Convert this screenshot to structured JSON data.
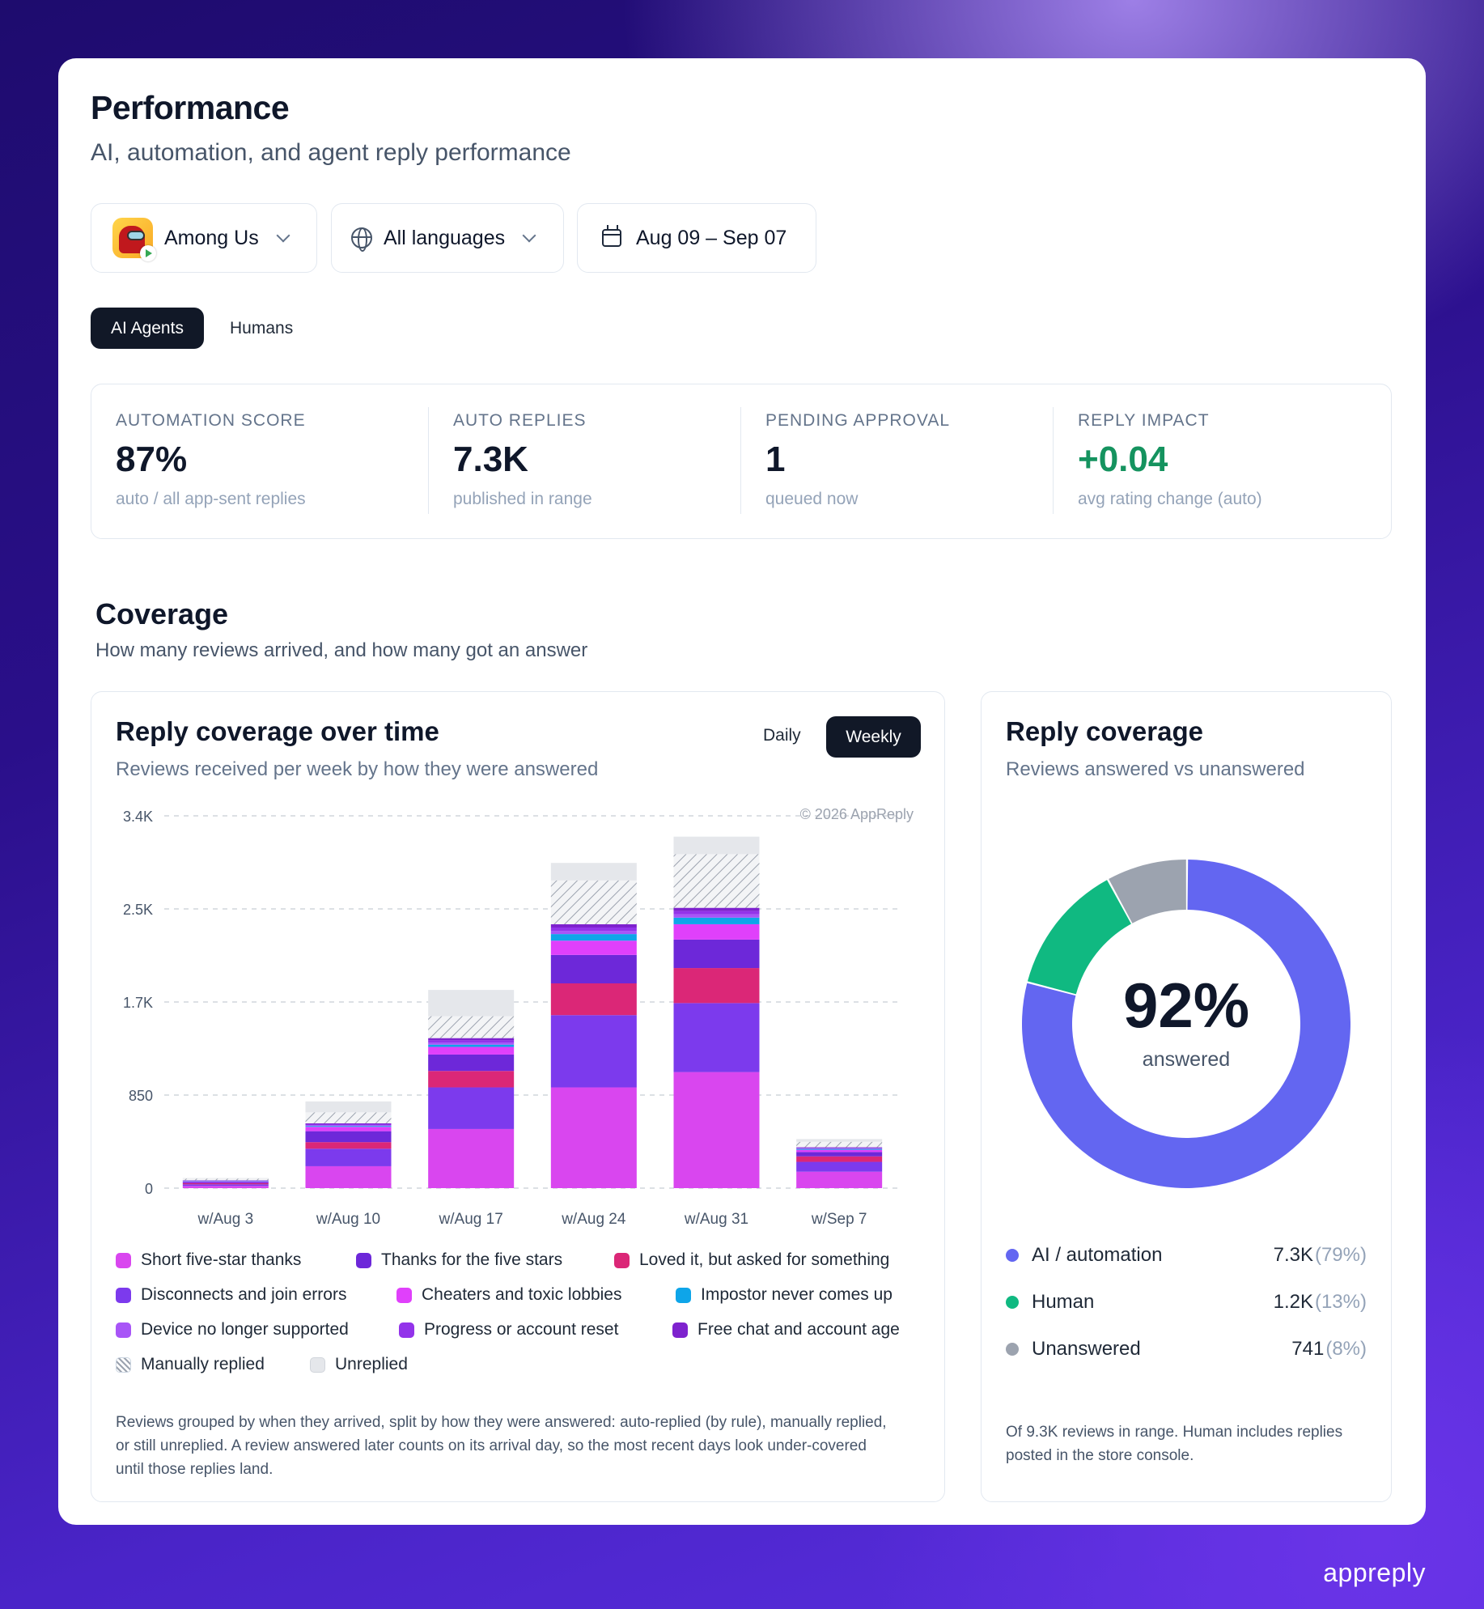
{
  "header": {
    "title": "Performance",
    "subtitle": "AI, automation, and agent reply performance"
  },
  "filters": {
    "app": "Among Us",
    "language": "All languages",
    "date_range": "Aug 09 – Sep 07"
  },
  "mode_tabs": {
    "active": "AI Agents",
    "inactive": "Humans"
  },
  "stats": [
    {
      "label": "AUTOMATION SCORE",
      "value": "87%",
      "detail": "auto / all app-sent replies"
    },
    {
      "label": "AUTO REPLIES",
      "value": "7.3K",
      "detail": "published in range"
    },
    {
      "label": "PENDING APPROVAL",
      "value": "1",
      "detail": "queued now"
    },
    {
      "label": "REPLY IMPACT",
      "value": "+0.04",
      "detail": "avg rating change (auto)"
    }
  ],
  "coverage": {
    "title": "Coverage",
    "subtitle": "How many reviews arrived, and how many got an answer"
  },
  "time_panel": {
    "title": "Reply coverage over time",
    "subtitle": "Reviews received per week by how they were answered",
    "toggle_daily": "Daily",
    "toggle_weekly": "Weekly",
    "watermark": "© 2026 AppReply",
    "note": "Reviews grouped by when they arrived, split by how they were answered: auto-replied (by rule), manually replied, or still unreplied. A review answered later counts on its arrival day, so the most recent days look under-covered until those replies land."
  },
  "chart_data": {
    "type": "bar",
    "stacked": true,
    "categories": [
      "w/Aug 3",
      "w/Aug 10",
      "w/Aug 17",
      "w/Aug 24",
      "w/Aug 31",
      "w/Sep 7"
    ],
    "y_ticks": [
      "0",
      "850",
      "1.7K",
      "2.5K",
      "3.4K"
    ],
    "y_tick_values": [
      0,
      850,
      1700,
      2550,
      3400
    ],
    "ylim": [
      0,
      3400
    ],
    "grid": true,
    "legend_position": "bottom",
    "series": [
      {
        "name": "Short five-star thanks",
        "color": "#d946ef",
        "values": [
          20,
          200,
          540,
          920,
          1060,
          150
        ]
      },
      {
        "name": "Disconnects and join errors",
        "color": "#7c3aed",
        "values": [
          15,
          160,
          380,
          660,
          630,
          90
        ]
      },
      {
        "name": "Loved it, but asked for something",
        "color": "#db2777",
        "values": [
          10,
          60,
          150,
          290,
          320,
          50
        ]
      },
      {
        "name": "Thanks for the five stars",
        "color": "#6d28d9",
        "values": [
          10,
          100,
          150,
          260,
          260,
          40
        ]
      },
      {
        "name": "Cheaters and toxic lobbies",
        "color": "#e040fb",
        "values": [
          5,
          40,
          70,
          130,
          140,
          20
        ]
      },
      {
        "name": "Impostor never comes up",
        "color": "#0ea5e9",
        "values": [
          3,
          8,
          20,
          60,
          60,
          8
        ]
      },
      {
        "name": "Device no longer supported",
        "color": "#a855f7",
        "values": [
          3,
          8,
          20,
          30,
          30,
          5
        ]
      },
      {
        "name": "Progress or account reset",
        "color": "#9333ea",
        "values": [
          3,
          8,
          20,
          30,
          30,
          5
        ]
      },
      {
        "name": "Free chat and account age",
        "color": "#7e22ce",
        "values": [
          3,
          8,
          20,
          30,
          30,
          5
        ]
      },
      {
        "name": "Manually replied",
        "color": "hatch",
        "values": [
          15,
          100,
          200,
          400,
          490,
          50
        ]
      },
      {
        "name": "Unreplied",
        "color": "#e5e7eb",
        "values": [
          5,
          100,
          240,
          160,
          160,
          25
        ]
      }
    ]
  },
  "legend": {
    "items": [
      {
        "name": "Short five-star thanks",
        "color": "#d946ef"
      },
      {
        "name": "Thanks for the five stars",
        "color": "#6d28d9"
      },
      {
        "name": "Loved it, but asked for something",
        "color": "#db2777"
      },
      {
        "name": "Disconnects and join errors",
        "color": "#7c3aed"
      },
      {
        "name": "Cheaters and toxic lobbies",
        "color": "#e040fb"
      },
      {
        "name": "Impostor never comes up",
        "color": "#0ea5e9"
      },
      {
        "name": "Device no longer supported",
        "color": "#a855f7"
      },
      {
        "name": "Progress or account reset",
        "color": "#9333ea"
      },
      {
        "name": "Free chat and account age",
        "color": "#7e22ce"
      },
      {
        "name": "Manually replied",
        "color": "hatch"
      },
      {
        "name": "Unreplied",
        "color": "#e5e7eb"
      }
    ]
  },
  "donut_panel": {
    "title": "Reply coverage",
    "subtitle": "Reviews answered vs unanswered",
    "center_value": "92%",
    "center_label": "answered",
    "note": "Of 9.3K reviews in range. Human includes replies posted in the store console.",
    "slices": [
      {
        "name": "AI / automation",
        "value": "7.3K",
        "pct": "(79%)",
        "fraction": 0.79,
        "color": "#6366f1"
      },
      {
        "name": "Human",
        "value": "1.2K",
        "pct": "(13%)",
        "fraction": 0.13,
        "color": "#10b981"
      },
      {
        "name": "Unanswered",
        "value": "741",
        "pct": "(8%)",
        "fraction": 0.08,
        "color": "#9ca3af"
      }
    ]
  },
  "brand": "appreply"
}
